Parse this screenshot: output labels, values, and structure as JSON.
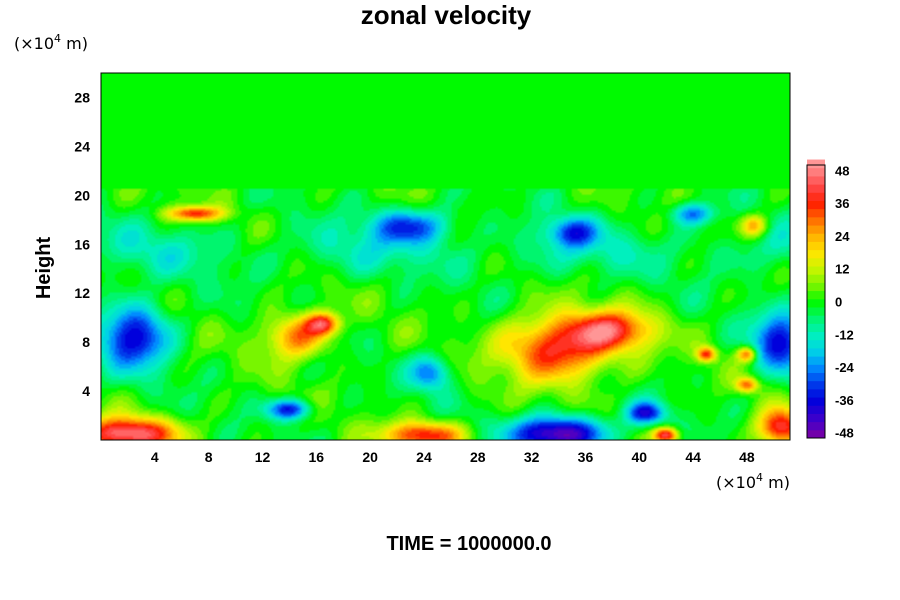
{
  "chart_data": {
    "type": "heatmap",
    "title": "zonal velocity",
    "ylabel": "Height",
    "y_unit": {
      "prefix": "(×10",
      "exp": "4",
      "suffix": " m)"
    },
    "x_unit": {
      "prefix": "(×10",
      "exp": "4",
      "suffix": " m)"
    },
    "x_ticks": [
      "4",
      "8",
      "12",
      "16",
      "20",
      "24",
      "28",
      "32",
      "36",
      "40",
      "44",
      "48"
    ],
    "x_tick_values": [
      4,
      8,
      12,
      16,
      20,
      24,
      28,
      32,
      36,
      40,
      44,
      48
    ],
    "xlim": [
      0,
      51.2
    ],
    "y_ticks": [
      "4",
      "8",
      "12",
      "16",
      "20",
      "24",
      "28"
    ],
    "y_tick_values": [
      4,
      8,
      12,
      16,
      20,
      24,
      28
    ],
    "ylim": [
      0,
      30
    ],
    "colorbar": {
      "ticks": [
        "48",
        "36",
        "24",
        "12",
        "0",
        "-12",
        "-24",
        "-36",
        "-48"
      ],
      "tick_values": [
        48,
        36,
        24,
        12,
        0,
        -12,
        -24,
        -36,
        -48
      ],
      "range": [
        -50,
        50
      ],
      "interval": 3
    },
    "field_features": [
      {
        "kind": "jet",
        "x": 2.5,
        "y": 8.5,
        "sx": 2.5,
        "sy": 2.6,
        "value": -38
      },
      {
        "kind": "jet",
        "x": 50.5,
        "y": 8,
        "sx": 2.0,
        "sy": 2.4,
        "value": -36
      },
      {
        "kind": "jet",
        "x": 34,
        "y": 7.5,
        "sx": 4.0,
        "sy": 2.6,
        "value": 40
      },
      {
        "kind": "jet",
        "x": 38,
        "y": 9,
        "sx": 3.0,
        "sy": 1.6,
        "value": 34
      },
      {
        "kind": "jet",
        "x": 14.5,
        "y": 8.5,
        "sx": 2.3,
        "sy": 1.8,
        "value": 30
      },
      {
        "kind": "jet",
        "x": 16.5,
        "y": 9.5,
        "sx": 1.2,
        "sy": 0.9,
        "value": 36
      },
      {
        "kind": "jet",
        "x": 24.5,
        "y": 5.5,
        "sx": 1.4,
        "sy": 1.4,
        "value": -26
      },
      {
        "kind": "jet",
        "x": 2,
        "y": 0.5,
        "sx": 3.5,
        "sy": 1.3,
        "value": 48
      },
      {
        "kind": "jet",
        "x": 24,
        "y": 0.4,
        "sx": 3.0,
        "sy": 1.1,
        "value": 38
      },
      {
        "kind": "jet",
        "x": 34,
        "y": 0.5,
        "sx": 3.5,
        "sy": 1.4,
        "value": -50
      },
      {
        "kind": "jet",
        "x": 50.5,
        "y": 1,
        "sx": 1.6,
        "sy": 1.5,
        "value": 42
      },
      {
        "kind": "jet",
        "x": 14,
        "y": 2.5,
        "sx": 1.6,
        "sy": 0.8,
        "value": -34
      },
      {
        "kind": "jet",
        "x": 42,
        "y": 0.4,
        "sx": 0.9,
        "sy": 0.6,
        "value": 44
      },
      {
        "kind": "jet",
        "x": 40.5,
        "y": 2.2,
        "sx": 1.4,
        "sy": 0.9,
        "value": -34
      },
      {
        "kind": "jet",
        "x": 7,
        "y": 18.5,
        "sx": 2.0,
        "sy": 0.6,
        "value": 36
      },
      {
        "kind": "jet",
        "x": 23,
        "y": 17.5,
        "sx": 3.0,
        "sy": 1.4,
        "value": -28
      },
      {
        "kind": "jet",
        "x": 35,
        "y": 17,
        "sx": 1.8,
        "sy": 1.2,
        "value": -26
      },
      {
        "kind": "jet",
        "x": 44,
        "y": 18.5,
        "sx": 1.6,
        "sy": 0.9,
        "value": -26
      },
      {
        "kind": "jet",
        "x": 48.5,
        "y": 17.5,
        "sx": 1.0,
        "sy": 0.9,
        "value": 26
      },
      {
        "kind": "jet",
        "x": 45,
        "y": 7,
        "sx": 0.7,
        "sy": 0.6,
        "value": 34
      },
      {
        "kind": "jet",
        "x": 48,
        "y": 7,
        "sx": 0.7,
        "sy": 0.6,
        "value": 32
      },
      {
        "kind": "jet",
        "x": 48,
        "y": 4.5,
        "sx": 0.8,
        "sy": 0.6,
        "value": 30
      }
    ]
  },
  "footer": {
    "time_text": "TIME = 1000000.0"
  }
}
